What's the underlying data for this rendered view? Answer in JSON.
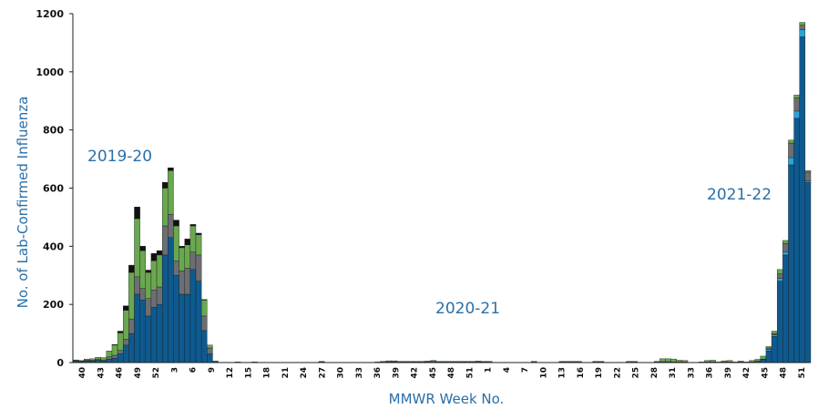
{
  "chart_data": {
    "type": "bar",
    "stacked": true,
    "ylabel": "No. of Lab-Confirmed Influenza",
    "xlabel": "MMWR Week No.",
    "ylim": [
      0,
      1200
    ],
    "y_ticks": [
      0,
      200,
      400,
      600,
      800,
      1000,
      1200
    ],
    "grid": false,
    "annotations": [
      "2019-20",
      "2020-21",
      "2021-22"
    ],
    "x_tick_labels": [
      "40",
      "43",
      "46",
      "49",
      "52",
      "3",
      "6",
      "9",
      "12",
      "15",
      "18",
      "21",
      "24",
      "27",
      "30",
      "33",
      "36",
      "39",
      "42",
      "45",
      "48",
      "51",
      "1",
      "4",
      "7",
      "10",
      "13",
      "16",
      "19",
      "22",
      "25",
      "28",
      "31",
      "33",
      "36",
      "39",
      "42",
      "45",
      "48",
      "51"
    ],
    "colors": {
      "blue": "#0e5a8f",
      "lightblue": "#2aa3d8",
      "gray": "#6d6e71",
      "green": "#6aa84f",
      "black": "#111111"
    },
    "series": [
      {
        "key": "blue",
        "values": [
          5,
          3,
          5,
          5,
          8,
          5,
          12,
          15,
          30,
          60,
          100,
          235,
          215,
          160,
          190,
          200,
          370,
          430,
          300,
          235,
          235,
          320,
          280,
          110,
          30,
          5,
          0,
          0,
          0,
          2,
          0,
          0,
          2,
          0,
          0,
          0,
          0,
          0,
          0,
          0,
          0,
          0,
          0,
          0,
          2,
          0,
          0,
          0,
          0,
          0,
          0,
          0,
          0,
          0,
          0,
          2,
          3,
          3,
          2,
          2,
          2,
          2,
          2,
          3,
          4,
          2,
          2,
          2,
          2,
          2,
          2,
          2,
          3,
          2,
          2,
          0,
          0,
          0,
          0,
          0,
          0,
          0,
          2,
          0,
          0,
          0,
          0,
          2,
          2,
          2,
          2,
          0,
          0,
          2,
          2,
          0,
          0,
          0,
          0,
          2,
          2,
          0,
          0,
          0,
          2,
          3,
          3,
          2,
          2,
          2,
          0,
          0,
          0,
          2,
          2,
          0,
          2,
          2,
          0,
          2,
          0,
          2,
          5,
          10,
          40,
          90,
          280,
          370,
          680,
          840,
          1120,
          620
        ]
      },
      {
        "key": "lightblue",
        "values": [
          0,
          0,
          0,
          0,
          0,
          0,
          0,
          0,
          0,
          0,
          0,
          0,
          0,
          0,
          0,
          0,
          0,
          0,
          0,
          0,
          0,
          0,
          0,
          0,
          0,
          0,
          0,
          0,
          0,
          0,
          0,
          0,
          0,
          0,
          0,
          0,
          0,
          0,
          0,
          0,
          0,
          0,
          0,
          0,
          0,
          0,
          0,
          0,
          0,
          0,
          0,
          0,
          0,
          0,
          0,
          0,
          0,
          0,
          0,
          0,
          0,
          0,
          0,
          0,
          0,
          0,
          0,
          0,
          0,
          0,
          0,
          0,
          0,
          0,
          0,
          0,
          0,
          0,
          0,
          0,
          0,
          0,
          0,
          0,
          0,
          0,
          0,
          0,
          0,
          0,
          0,
          0,
          0,
          0,
          0,
          0,
          0,
          0,
          0,
          0,
          0,
          0,
          0,
          0,
          0,
          0,
          0,
          0,
          0,
          0,
          0,
          0,
          0,
          0,
          0,
          0,
          0,
          0,
          0,
          0,
          0,
          0,
          0,
          0,
          5,
          5,
          10,
          10,
          25,
          25,
          25,
          5
        ]
      },
      {
        "key": "gray",
        "values": [
          2,
          2,
          3,
          3,
          4,
          4,
          8,
          10,
          12,
          20,
          50,
          60,
          40,
          60,
          60,
          60,
          100,
          80,
          50,
          80,
          90,
          60,
          90,
          50,
          20,
          0,
          0,
          0,
          0,
          0,
          0,
          0,
          0,
          0,
          0,
          0,
          0,
          0,
          0,
          0,
          0,
          0,
          0,
          0,
          0,
          0,
          0,
          0,
          0,
          0,
          0,
          0,
          0,
          0,
          0,
          0,
          0,
          0,
          0,
          0,
          0,
          0,
          0,
          0,
          0,
          0,
          0,
          0,
          0,
          0,
          0,
          0,
          0,
          0,
          0,
          0,
          0,
          0,
          0,
          0,
          0,
          0,
          0,
          0,
          0,
          0,
          0,
          0,
          0,
          0,
          0,
          0,
          0,
          0,
          0,
          0,
          0,
          0,
          0,
          0,
          0,
          0,
          0,
          0,
          0,
          0,
          0,
          0,
          0,
          0,
          0,
          0,
          0,
          0,
          0,
          0,
          0,
          0,
          0,
          0,
          0,
          0,
          0,
          2,
          5,
          5,
          15,
          30,
          50,
          45,
          15,
          30
        ]
      },
      {
        "key": "green",
        "values": [
          2,
          2,
          4,
          5,
          6,
          8,
          20,
          35,
          60,
          100,
          160,
          200,
          130,
          90,
          100,
          110,
          130,
          150,
          120,
          80,
          80,
          90,
          70,
          55,
          10,
          0,
          0,
          0,
          0,
          0,
          0,
          0,
          0,
          0,
          0,
          0,
          0,
          0,
          0,
          0,
          0,
          0,
          0,
          0,
          2,
          0,
          0,
          0,
          0,
          0,
          0,
          0,
          0,
          0,
          2,
          2,
          3,
          3,
          2,
          2,
          2,
          2,
          2,
          2,
          3,
          2,
          2,
          2,
          2,
          2,
          2,
          2,
          2,
          2,
          2,
          0,
          0,
          0,
          0,
          0,
          0,
          0,
          2,
          0,
          0,
          0,
          0,
          2,
          2,
          2,
          2,
          0,
          0,
          2,
          2,
          0,
          0,
          0,
          0,
          2,
          2,
          0,
          0,
          0,
          2,
          10,
          10,
          10,
          6,
          5,
          0,
          0,
          2,
          5,
          6,
          2,
          4,
          5,
          2,
          3,
          2,
          5,
          6,
          10,
          5,
          8,
          15,
          10,
          10,
          10,
          10,
          5
        ]
      },
      {
        "key": "black",
        "values": [
          0,
          0,
          0,
          0,
          0,
          0,
          0,
          2,
          6,
          15,
          25,
          40,
          15,
          8,
          25,
          15,
          20,
          10,
          20,
          5,
          20,
          5,
          5,
          2,
          0,
          0,
          0,
          0,
          0,
          0,
          0,
          0,
          0,
          0,
          0,
          0,
          0,
          0,
          0,
          0,
          0,
          0,
          0,
          0,
          0,
          0,
          0,
          0,
          0,
          0,
          0,
          0,
          0,
          0,
          0,
          0,
          0,
          0,
          0,
          0,
          0,
          0,
          0,
          0,
          0,
          0,
          0,
          0,
          0,
          0,
          0,
          0,
          0,
          0,
          0,
          0,
          0,
          0,
          0,
          0,
          0,
          0,
          0,
          0,
          0,
          0,
          0,
          0,
          0,
          0,
          0,
          0,
          0,
          0,
          0,
          0,
          0,
          0,
          0,
          0,
          0,
          0,
          0,
          0,
          0,
          0,
          0,
          0,
          0,
          0,
          0,
          0,
          0,
          0,
          0,
          0,
          0,
          0,
          0,
          0,
          0,
          0,
          0,
          0,
          0,
          0,
          0,
          0,
          0,
          0,
          0,
          0
        ]
      }
    ]
  }
}
